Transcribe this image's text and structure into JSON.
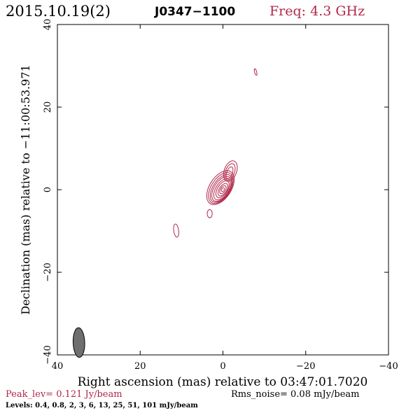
{
  "header": {
    "date": "2015.10.19(2)",
    "source": "J0347−1100",
    "freq": "Freq: 4.3 GHz"
  },
  "colors": {
    "contour": "#b0284a",
    "accent": "#b0284a",
    "text": "#000000",
    "beam_fill": "#6e6e6e"
  },
  "footer": {
    "peak": "Peak_lev=  0.121 Jy/beam",
    "rms": "Rms_noise= 0.08 mJy/beam",
    "levels": "Levels: 0.4, 0.8,   2,   3,   6,  13,  25,  51, 101 mJy/beam"
  },
  "chart_data": {
    "type": "contour",
    "xlabel": "Right ascension (mas) relative to 03:47:01.7020",
    "ylabel": "Declination (mas) relative to −11:00:53.971",
    "xlim": [
      40,
      -40
    ],
    "ylim": [
      -40,
      40
    ],
    "x_ticks": [
      40,
      20,
      0,
      -20,
      -40
    ],
    "y_ticks": [
      -40,
      -20,
      0,
      20,
      40
    ],
    "x_tick_labels": [
      "40",
      "20",
      "0",
      "−20",
      "−40"
    ],
    "y_tick_labels": [
      "−40",
      "−20",
      "0",
      "20",
      "40"
    ],
    "levels_mJy": [
      0.4,
      0.8,
      2,
      3,
      6,
      13,
      25,
      51,
      101
    ],
    "peak_Jy_per_beam": 0.121,
    "rms_mJy_per_beam": 0.08,
    "contours": [
      {
        "level": 0.4,
        "cx": 0.6,
        "cy": 0.5,
        "a": 4.6,
        "b": 2.6,
        "pa": 33
      },
      {
        "level": 0.8,
        "cx": 0.5,
        "cy": 0.4,
        "a": 4.2,
        "b": 2.3,
        "pa": 33
      },
      {
        "level": 2,
        "cx": 0.4,
        "cy": 0.3,
        "a": 3.8,
        "b": 2.0,
        "pa": 33
      },
      {
        "level": 3,
        "cx": 0.3,
        "cy": 0.2,
        "a": 3.4,
        "b": 1.8,
        "pa": 33
      },
      {
        "level": 6,
        "cx": 0.2,
        "cy": 0.1,
        "a": 2.9,
        "b": 1.5,
        "pa": 33
      },
      {
        "level": 13,
        "cx": 0.1,
        "cy": 0.1,
        "a": 2.3,
        "b": 1.2,
        "pa": 33
      },
      {
        "level": 25,
        "cx": 0.0,
        "cy": 0.0,
        "a": 1.7,
        "b": 0.9,
        "pa": 33
      },
      {
        "level": 51,
        "cx": 0.0,
        "cy": 0.0,
        "a": 1.1,
        "b": 0.6,
        "pa": 33
      },
      {
        "level": 101,
        "cx": 0.0,
        "cy": 0.0,
        "a": 0.5,
        "b": 0.3,
        "pa": 33
      }
    ],
    "jet_extension": [
      {
        "level": 0.4,
        "cx": -1.8,
        "cy": 4.5,
        "a": 2.6,
        "b": 1.5,
        "pa": 20
      },
      {
        "level": 0.8,
        "cx": -1.7,
        "cy": 4.3,
        "a": 2.1,
        "b": 1.1,
        "pa": 20
      },
      {
        "level": 2,
        "cx": -1.6,
        "cy": 4.1,
        "a": 1.5,
        "b": 0.7,
        "pa": 20
      }
    ],
    "outer_components": [
      {
        "level": 0.4,
        "cx": 3.2,
        "cy": -5.8,
        "a": 1.0,
        "b": 0.6,
        "pa": 0
      },
      {
        "level": 0.4,
        "cx": 11.3,
        "cy": -9.9,
        "a": 1.6,
        "b": 0.6,
        "pa": -8
      },
      {
        "level": 0.4,
        "cx": -7.9,
        "cy": 28.5,
        "a": 0.8,
        "b": 0.25,
        "pa": -15
      }
    ],
    "beam": {
      "x": 34.8,
      "y": -37.0,
      "major": 3.6,
      "minor": 1.4,
      "pa": -2
    }
  }
}
